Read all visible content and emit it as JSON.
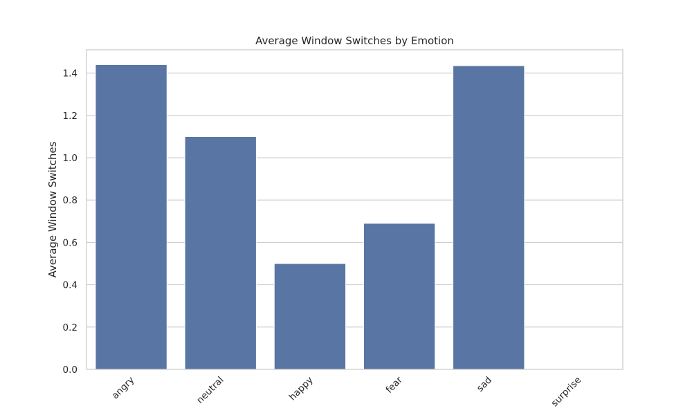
{
  "chart_data": {
    "type": "bar",
    "title": "Average Window Switches by Emotion",
    "xlabel": "",
    "ylabel": "Average Window Switches",
    "categories": [
      "angry",
      "neutral",
      "happy",
      "fear",
      "sad",
      "surprise"
    ],
    "values": [
      1.44,
      1.1,
      0.5,
      0.69,
      1.435,
      0.0
    ],
    "ylim": [
      0,
      1.51
    ],
    "yticks": [
      0.0,
      0.2,
      0.4,
      0.6,
      0.8,
      1.0,
      1.2,
      1.4
    ],
    "ytick_labels": [
      "0.0",
      "0.2",
      "0.4",
      "0.6",
      "0.8",
      "1.0",
      "1.2",
      "1.4"
    ],
    "grid": true,
    "x_tick_rotation_deg": 45,
    "colors": {
      "bar": "#5975a4",
      "grid": "#cccccc",
      "text": "#262626"
    }
  }
}
